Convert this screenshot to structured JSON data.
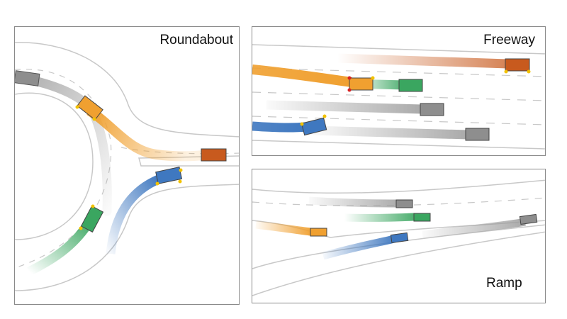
{
  "panels": {
    "roundabout": {
      "label": "Roundabout"
    },
    "freeway": {
      "label": "Freeway"
    },
    "ramp": {
      "label": "Ramp"
    }
  },
  "colors": {
    "orange": "#f0a030",
    "dark_orange": "#c85a1e",
    "green": "#3aa660",
    "blue": "#3f78c0",
    "gray": "#9a9a9a",
    "marker_yellow": "#f2c200",
    "marker_red": "#d92020",
    "road_edge": "#c8c8c8",
    "lane_dash": "#c8c8c8"
  },
  "legend_icons": [
    "vehicle-box",
    "trajectory-trail",
    "contact-point-marker"
  ]
}
